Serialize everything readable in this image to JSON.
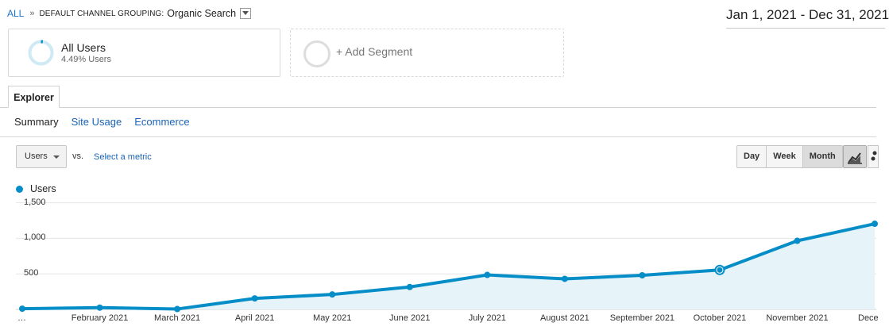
{
  "breadcrumb": {
    "root": "ALL",
    "separator": "»",
    "dimension": "DEFAULT CHANNEL GROUPING:",
    "value": "Organic Search"
  },
  "date_range": "Jan 1, 2021 - Dec 31, 2021",
  "segments": {
    "active_name": "All Users",
    "active_share": "4.49% Users",
    "add_label": "+ Add Segment"
  },
  "tabs": {
    "explorer": "Explorer"
  },
  "subtabs": {
    "summary": "Summary",
    "site_usage": "Site Usage",
    "ecommerce": "Ecommerce"
  },
  "metric": {
    "selected": "Users",
    "vs": "vs.",
    "select_label": "Select a metric"
  },
  "period": {
    "day": "Day",
    "week": "Week",
    "month": "Month",
    "active": "Month"
  },
  "icons": {
    "line_chart_view": "line-chart-icon",
    "motion_chart_view": "motion-chart-icon",
    "segment_ring": "donut-icon"
  },
  "colors": {
    "series": "#058dc7",
    "area": "#e6f4fa",
    "link": "#1a63b7"
  },
  "chart_data": {
    "type": "area",
    "series": [
      {
        "name": "Users",
        "values": [
          10,
          25,
          5,
          155,
          210,
          315,
          485,
          430,
          480,
          555,
          965,
          1205
        ]
      }
    ],
    "categories": [
      "…",
      "February 2021",
      "March 2021",
      "April 2021",
      "May 2021",
      "June 2021",
      "July 2021",
      "August 2021",
      "September 2021",
      "October 2021",
      "November 2021",
      "Dece"
    ],
    "yticks": [
      "1,500",
      "1,000",
      "500"
    ],
    "ylim": [
      0,
      1500
    ],
    "highlight_index": 9,
    "grid": true
  }
}
